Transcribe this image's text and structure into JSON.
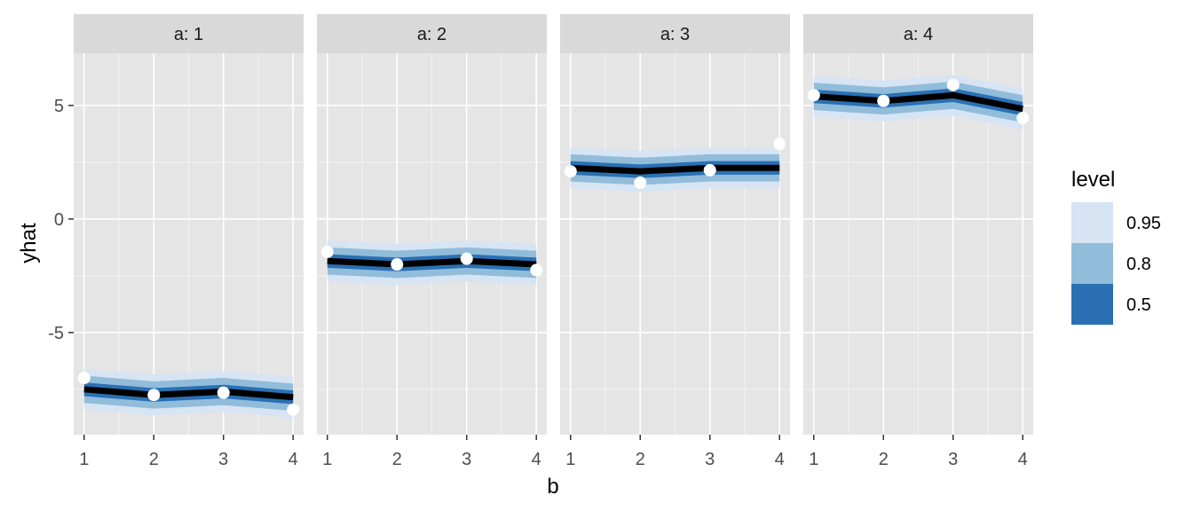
{
  "chart_data": {
    "type": "line",
    "facet_variable": "a",
    "facets": [
      {
        "label": "a: 1",
        "x": [
          1,
          2,
          3,
          4
        ],
        "fit": [
          -7.5,
          -7.75,
          -7.6,
          -7.85
        ],
        "points": [
          -7.0,
          -7.75,
          -7.65,
          -8.4
        ]
      },
      {
        "label": "a: 2",
        "x": [
          1,
          2,
          3,
          4
        ],
        "fit": [
          -1.85,
          -2.0,
          -1.85,
          -2.0
        ],
        "points": [
          -1.45,
          -2.0,
          -1.75,
          -2.25
        ]
      },
      {
        "label": "a: 3",
        "x": [
          1,
          2,
          3,
          4
        ],
        "fit": [
          2.25,
          2.1,
          2.25,
          2.25
        ],
        "points": [
          2.1,
          1.6,
          2.15,
          3.3
        ]
      },
      {
        "label": "a: 4",
        "x": [
          1,
          2,
          3,
          4
        ],
        "fit": [
          5.4,
          5.2,
          5.45,
          4.85
        ],
        "points": [
          5.45,
          5.2,
          5.9,
          4.45
        ]
      }
    ],
    "interval_halfwidths": {
      "0.5": 0.3,
      "0.8": 0.6,
      "0.95": 0.9
    },
    "xlabel": "b",
    "ylabel": "yhat",
    "x_ticks": [
      "1",
      "2",
      "3",
      "4"
    ],
    "xlim": [
      0.85,
      4.15
    ],
    "y_ticks": [
      5,
      0,
      -5
    ],
    "y_tick_labels": [
      "5",
      "0",
      "-5"
    ],
    "ylim": [
      -9.5,
      7.3
    ],
    "grid": true,
    "legend": {
      "title": "level",
      "position": "right",
      "entries": [
        {
          "label": "0.95",
          "color": "#d6e4f4"
        },
        {
          "label": "0.8",
          "color": "#91bddb"
        },
        {
          "label": "0.5",
          "color": "#2a70b3"
        }
      ]
    },
    "colors": {
      "panel_bg": "#e5e5e5",
      "strip_bg": "#d9d9d9",
      "grid_line": "#ffffff",
      "fit_line": "#000000",
      "point_fill": "#ffffff",
      "band_95": "#d6e4f4",
      "band_80": "#91bddb",
      "band_50": "#2a70b3"
    }
  }
}
